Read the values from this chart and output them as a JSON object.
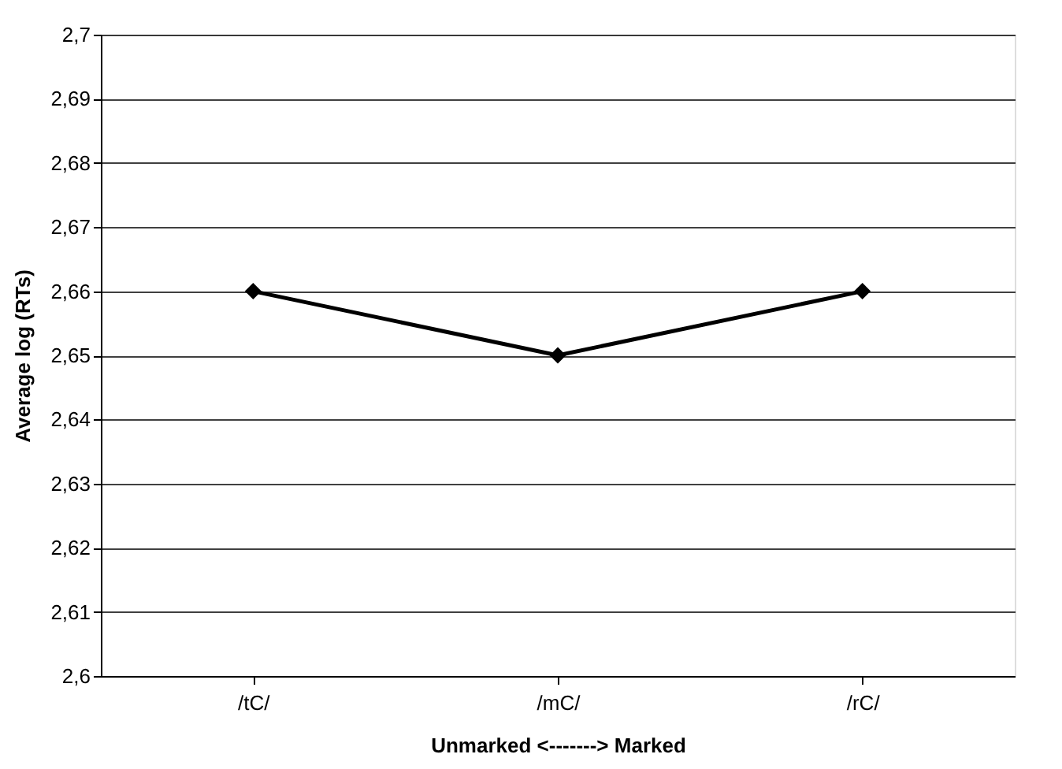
{
  "chart_data": {
    "type": "line",
    "xlabel": "Unmarked <-------> Marked",
    "ylabel": "Average log (RTs)",
    "categories": [
      "/tC/",
      "/mC/",
      "/rC/"
    ],
    "series": [
      {
        "color": "#000000",
        "values": [
          2.66,
          2.65,
          2.66
        ]
      }
    ],
    "ylim": [
      2.6,
      2.7
    ],
    "yticks": [
      {
        "value": 2.6,
        "label": "2,6"
      },
      {
        "value": 2.61,
        "label": "2,61"
      },
      {
        "value": 2.62,
        "label": "2,62"
      },
      {
        "value": 2.63,
        "label": "2,63"
      },
      {
        "value": 2.64,
        "label": "2,64"
      },
      {
        "value": 2.65,
        "label": "2,65"
      },
      {
        "value": 2.66,
        "label": "2,66"
      },
      {
        "value": 2.67,
        "label": "2,67"
      },
      {
        "value": 2.68,
        "label": "2,68"
      },
      {
        "value": 2.69,
        "label": "2,69"
      },
      {
        "value": 2.7,
        "label": "2,7"
      }
    ],
    "grid": "y",
    "marker": "diamond",
    "line_style": "solid"
  }
}
